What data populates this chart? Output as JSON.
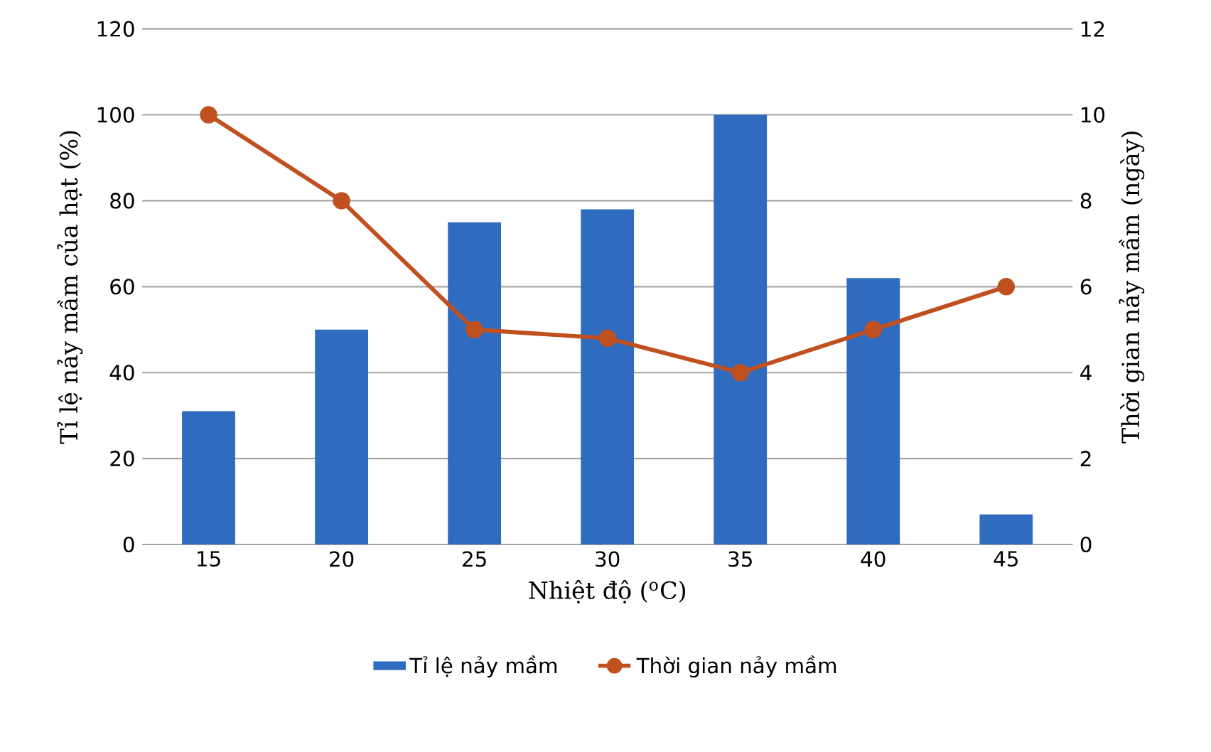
{
  "chart_data": {
    "type": "bar",
    "xlabel": "Nhiệt độ ($^{o}$C)",
    "ylabel": "Tỉ lệ nảy mầm của hạt (%)",
    "y2label": "Thời gian nảy mầm (ngày)",
    "categories": [
      "15",
      "20",
      "25",
      "30",
      "35",
      "40",
      "45"
    ],
    "series": [
      {
        "name": "Tỉ lệ nảy mầm",
        "color": "#2f6bbf",
        "values": [
          31,
          50,
          75,
          78,
          100,
          62,
          7
        ]
      },
      {
        "name": "Thời gian nảy mầm",
        "type": "line",
        "axis": "y2",
        "color": "#c0501f",
        "values": [
          10,
          8,
          5,
          4.8,
          4,
          5,
          6
        ]
      }
    ],
    "ylim": [
      0,
      120
    ],
    "yticks": [
      0,
      20,
      40,
      60,
      80,
      100,
      120
    ],
    "y2lim": [
      0,
      12
    ],
    "y2ticks": [
      0,
      2,
      4,
      6,
      8,
      10,
      12
    ],
    "grid": "y",
    "legend": "bottom",
    "marker": "circle"
  }
}
